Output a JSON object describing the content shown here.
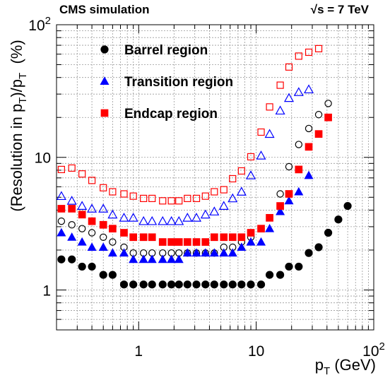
{
  "header": {
    "left": "CMS simulation",
    "right": "√s = 7 TeV"
  },
  "axes": {
    "ylabel_parts": [
      "(Resolution in p",
      "T",
      ")/p",
      "T",
      "  (%)"
    ],
    "xlabel_parts": [
      "p",
      "T",
      " (GeV)"
    ],
    "x_ticks": [
      {
        "value": 1,
        "base": "1",
        "exp": ""
      },
      {
        "value": 10,
        "base": "10",
        "exp": ""
      },
      {
        "value": 100,
        "base": "10",
        "exp": "2"
      }
    ],
    "y_ticks": [
      {
        "value": 1,
        "base": "1",
        "exp": ""
      },
      {
        "value": 10,
        "base": "10",
        "exp": ""
      },
      {
        "value": 100,
        "base": "10",
        "exp": "2"
      }
    ]
  },
  "chart_data": {
    "type": "scatter",
    "x_scale": "log",
    "y_scale": "log",
    "xlim": [
      0.2,
      100
    ],
    "ylim": [
      0.5,
      100
    ],
    "grid": true,
    "legend_position": "top-left",
    "x": [
      0.22,
      0.27,
      0.33,
      0.4,
      0.5,
      0.6,
      0.75,
      0.9,
      1.1,
      1.3,
      1.6,
      1.9,
      2.2,
      2.6,
      3.1,
      3.7,
      4.4,
      5.3,
      6.3,
      7.5,
      9.0,
      11.0,
      13.0,
      16.0,
      19.0,
      23.0,
      28.0,
      34.0,
      41.0,
      50.0,
      60.0,
      72.0,
      90.0
    ],
    "series": [
      {
        "name": "Barrel region",
        "marker": "circle",
        "color": "#000000",
        "filled": true,
        "values": [
          1.7,
          1.7,
          1.5,
          1.5,
          1.3,
          1.3,
          1.1,
          1.1,
          1.1,
          1.1,
          1.1,
          1.1,
          1.1,
          1.1,
          1.1,
          1.1,
          1.1,
          1.1,
          1.1,
          1.1,
          1.1,
          1.1,
          1.3,
          1.3,
          1.5,
          1.5,
          1.9,
          2.1,
          2.7,
          3.4,
          4.3,
          null,
          null
        ]
      },
      {
        "name": "",
        "marker": "circle",
        "color": "#000000",
        "filled": false,
        "values": [
          3.3,
          3.1,
          2.9,
          2.7,
          2.5,
          2.3,
          2.1,
          1.9,
          1.9,
          1.9,
          1.9,
          1.9,
          1.9,
          1.9,
          1.9,
          1.9,
          1.9,
          2.1,
          2.1,
          2.3,
          2.5,
          2.9,
          3.5,
          5.3,
          8.5,
          12.5,
          16.5,
          21.0,
          25.5,
          null,
          null,
          null,
          null
        ]
      },
      {
        "name": "Transition region",
        "marker": "triangle",
        "color": "#0000ff",
        "filled": true,
        "values": [
          2.7,
          2.5,
          2.3,
          2.1,
          2.1,
          1.9,
          1.9,
          1.7,
          1.7,
          1.7,
          1.7,
          1.7,
          1.7,
          1.9,
          1.9,
          1.9,
          1.9,
          1.9,
          1.9,
          2.1,
          2.3,
          2.3,
          2.9,
          3.9,
          4.7,
          5.5,
          7.3,
          null,
          null,
          null,
          null,
          null,
          null
        ]
      },
      {
        "name": "",
        "marker": "triangle",
        "color": "#0000ff",
        "filled": false,
        "values": [
          5.1,
          4.7,
          4.3,
          4.1,
          4.1,
          3.7,
          3.5,
          3.5,
          3.3,
          3.3,
          3.3,
          3.3,
          3.3,
          3.5,
          3.5,
          3.7,
          3.9,
          4.3,
          4.9,
          5.5,
          7.3,
          10.3,
          15.0,
          22.5,
          28.0,
          31.0,
          32.5,
          null,
          null,
          null,
          null,
          null,
          null
        ]
      },
      {
        "name": "Endcap region",
        "marker": "square",
        "color": "#ff0000",
        "filled": true,
        "values": [
          4.1,
          4.1,
          3.7,
          3.3,
          3.1,
          2.9,
          2.7,
          2.5,
          2.5,
          2.5,
          2.3,
          2.3,
          2.3,
          2.3,
          2.3,
          2.3,
          2.5,
          2.5,
          2.5,
          2.5,
          2.7,
          2.9,
          3.5,
          4.3,
          5.3,
          8.1,
          12.0,
          15.0,
          20.0,
          null,
          null,
          null,
          null
        ]
      },
      {
        "name": "",
        "marker": "square",
        "color": "#ff0000",
        "filled": false,
        "values": [
          8.1,
          8.3,
          7.5,
          6.7,
          5.9,
          5.5,
          5.3,
          5.1,
          4.9,
          4.9,
          4.7,
          4.7,
          4.7,
          4.9,
          4.9,
          5.1,
          5.5,
          5.7,
          6.9,
          7.9,
          10.1,
          15.5,
          24.0,
          35.0,
          48.0,
          58.0,
          62.0,
          66.0,
          null,
          null,
          null,
          null,
          null
        ]
      }
    ]
  }
}
